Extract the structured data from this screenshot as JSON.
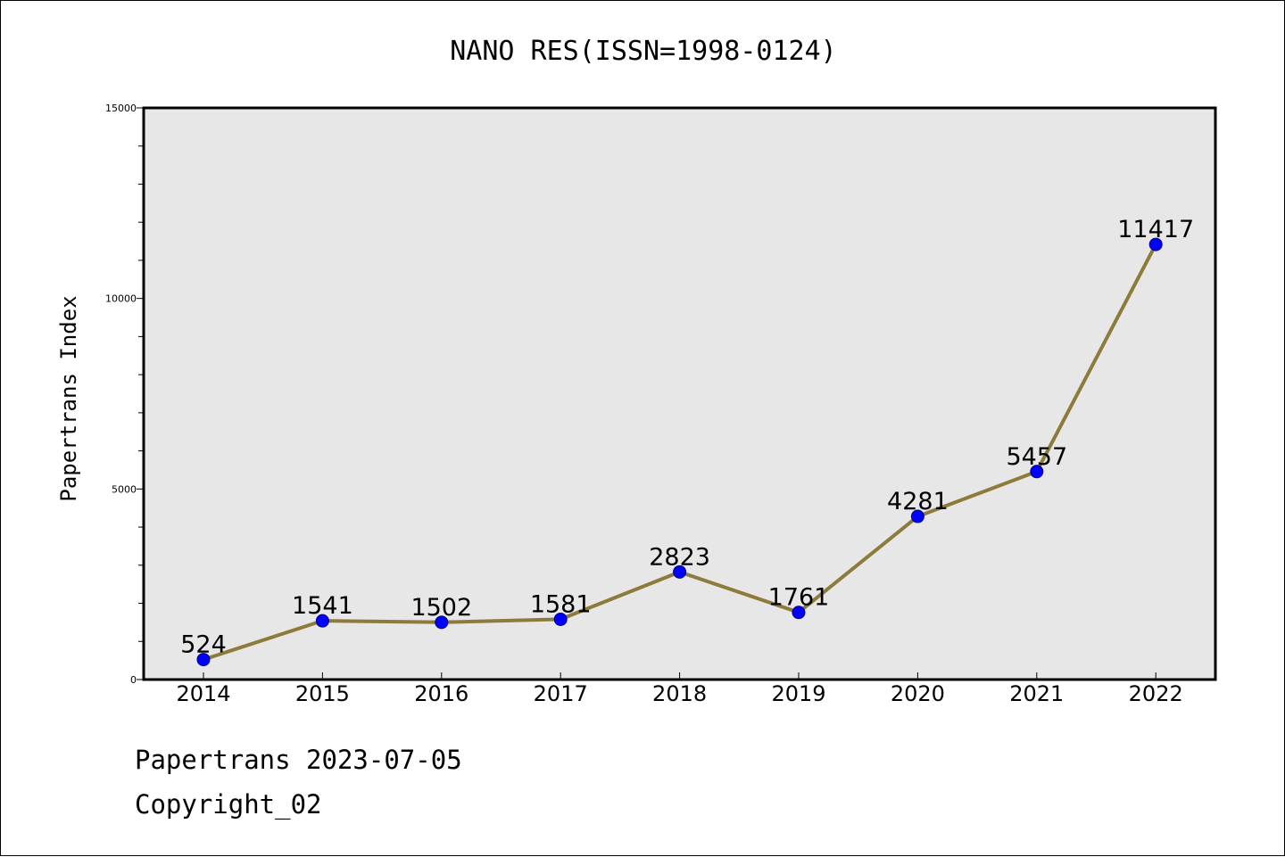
{
  "chart_data": {
    "type": "line",
    "title": "NANO RES(ISSN=1998-0124)",
    "xlabel": "",
    "ylabel": "Papertrans Index",
    "categories": [
      "2014",
      "2015",
      "2016",
      "2017",
      "2018",
      "2019",
      "2020",
      "2021",
      "2022"
    ],
    "series": [
      {
        "values": [
          524,
          1541,
          1502,
          1581,
          2823,
          1761,
          4281,
          5457,
          11417
        ]
      }
    ],
    "ylim": [
      0,
      15000
    ],
    "yticks": [
      "0",
      "5000",
      "10000",
      "15000"
    ],
    "grid": false,
    "legend": "none",
    "colors": {
      "plot_background": "#e7e7e7",
      "line": "#8c7b3a",
      "marker_fill": "#0000ff",
      "marker_edge": "#000080"
    }
  },
  "footer": {
    "line1": "Papertrans 2023-07-05",
    "line2": "Copyright_02"
  }
}
